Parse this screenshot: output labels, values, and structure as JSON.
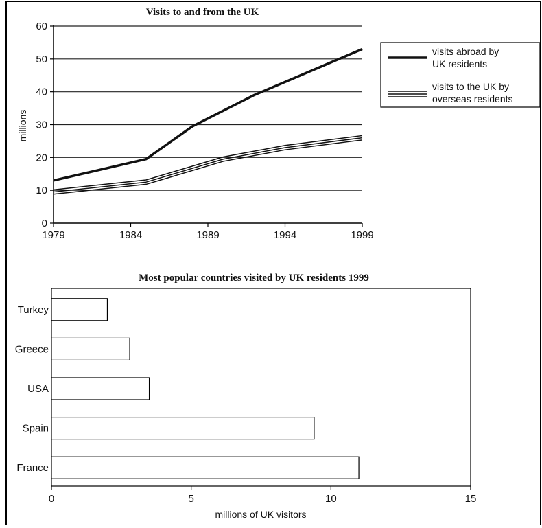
{
  "chart_data": [
    {
      "type": "line",
      "title": "Visits to and from the UK",
      "xlabel": "",
      "ylabel": "millions",
      "xlim": [
        1979,
        1999
      ],
      "ylim": [
        0,
        60
      ],
      "x_ticks": [
        "1979",
        "1984",
        "1989",
        "1994",
        "1999"
      ],
      "y_ticks": [
        "0",
        "10",
        "20",
        "30",
        "40",
        "50",
        "60"
      ],
      "grid": "horizontal",
      "legend_position": "right",
      "series": [
        {
          "name": "visits abroad by UK residents",
          "legend_lines": [
            "visits abroad by",
            "UK residents"
          ],
          "style": "thick-solid",
          "color": "#111111",
          "points": [
            [
              1979,
              13
            ],
            [
              1985,
              19.5
            ],
            [
              1988,
              29.5
            ],
            [
              1992,
              39
            ],
            [
              1999,
              53
            ]
          ]
        },
        {
          "name": "visits to the UK by overseas residents",
          "legend_lines": [
            "visits to the UK by",
            "overseas residents"
          ],
          "style": "triple-line",
          "color": "#111111",
          "points": [
            [
              1979,
              9.5
            ],
            [
              1985,
              12.5
            ],
            [
              1990,
              19.5
            ],
            [
              1994,
              23
            ],
            [
              1999,
              26
            ]
          ]
        }
      ]
    },
    {
      "type": "bar",
      "orientation": "horizontal",
      "title": "Most popular countries visited by UK residents 1999",
      "xlabel": "millions of UK visitors",
      "ylabel": "",
      "xlim": [
        0,
        15
      ],
      "x_ticks": [
        "0",
        "5",
        "10",
        "15"
      ],
      "categories": [
        "Turkey",
        "Greece",
        "USA",
        "Spain",
        "France"
      ],
      "values": [
        2,
        2.8,
        3.5,
        9.4,
        11
      ]
    }
  ]
}
